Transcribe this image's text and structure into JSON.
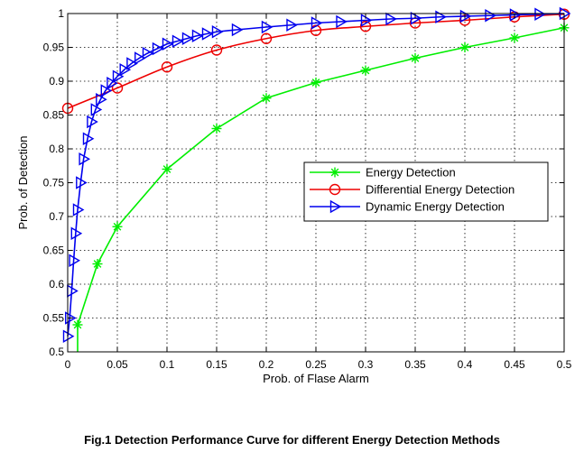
{
  "caption": "Fig.1 Detection Performance Curve for different Energy Detection Methods",
  "chart_data": {
    "type": "line",
    "title": "",
    "xlabel": "Prob. of Flase Alarm",
    "ylabel": "Prob. of Detection",
    "xlim": [
      0,
      0.5
    ],
    "ylim": [
      0.5,
      1
    ],
    "xticks": [
      0,
      0.05,
      0.1,
      0.15,
      0.2,
      0.25,
      0.3,
      0.35,
      0.4,
      0.45,
      0.5
    ],
    "yticks": [
      0.5,
      0.55,
      0.6,
      0.65,
      0.7,
      0.75,
      0.8,
      0.85,
      0.9,
      0.95,
      1
    ],
    "xtick_labels": [
      "0",
      "0.05",
      "0.1",
      "0.15",
      "0.2",
      "0.25",
      "0.3",
      "0.35",
      "0.4",
      "0.45",
      "0.5"
    ],
    "ytick_labels": [
      "0.5",
      "0.55",
      "0.6",
      "0.65",
      "0.7",
      "0.75",
      "0.8",
      "0.85",
      "0.9",
      "0.95",
      "1"
    ],
    "grid": true,
    "grid_style": "dotted",
    "legend_position": "center-right",
    "series": [
      {
        "name": "Energy Detection",
        "color": "#00ee00",
        "marker": "star",
        "x": [
          0.01,
          0.03,
          0.05,
          0.1,
          0.15,
          0.2,
          0.25,
          0.3,
          0.35,
          0.4,
          0.45,
          0.5
        ],
        "y": [
          0.54,
          0.63,
          0.685,
          0.77,
          0.83,
          0.875,
          0.898,
          0.916,
          0.934,
          0.95,
          0.964,
          0.979
        ],
        "line_start": {
          "x": 0.01,
          "y": 0.5
        }
      },
      {
        "name": "Differential Energy Detection",
        "color": "#ee0000",
        "marker": "circle",
        "x": [
          0,
          0.05,
          0.1,
          0.15,
          0.2,
          0.25,
          0.3,
          0.35,
          0.4,
          0.45,
          0.5
        ],
        "y": [
          0.86,
          0.89,
          0.921,
          0.946,
          0.963,
          0.975,
          0.981,
          0.986,
          0.99,
          0.995,
          0.999
        ],
        "smooth": true
      },
      {
        "name": "Dynamic Energy Detection",
        "color": "#0000ee",
        "marker": "triangle-right",
        "x": [
          0,
          0.002,
          0.004,
          0.006,
          0.008,
          0.01,
          0.013,
          0.016,
          0.02,
          0.024,
          0.028,
          0.033,
          0.038,
          0.044,
          0.05,
          0.057,
          0.064,
          0.072,
          0.08,
          0.09,
          0.1,
          0.11,
          0.12,
          0.13,
          0.14,
          0.15,
          0.17,
          0.2,
          0.225,
          0.25,
          0.275,
          0.3,
          0.325,
          0.35,
          0.375,
          0.4,
          0.425,
          0.45,
          0.475,
          0.5
        ],
        "y": [
          0.523,
          0.55,
          0.59,
          0.635,
          0.675,
          0.71,
          0.75,
          0.785,
          0.815,
          0.84,
          0.858,
          0.873,
          0.886,
          0.897,
          0.907,
          0.917,
          0.926,
          0.934,
          0.941,
          0.948,
          0.955,
          0.959,
          0.963,
          0.967,
          0.97,
          0.973,
          0.976,
          0.98,
          0.983,
          0.986,
          0.988,
          0.99,
          0.992,
          0.993,
          0.995,
          0.996,
          0.997,
          0.998,
          0.999,
          1.0
        ]
      }
    ]
  }
}
